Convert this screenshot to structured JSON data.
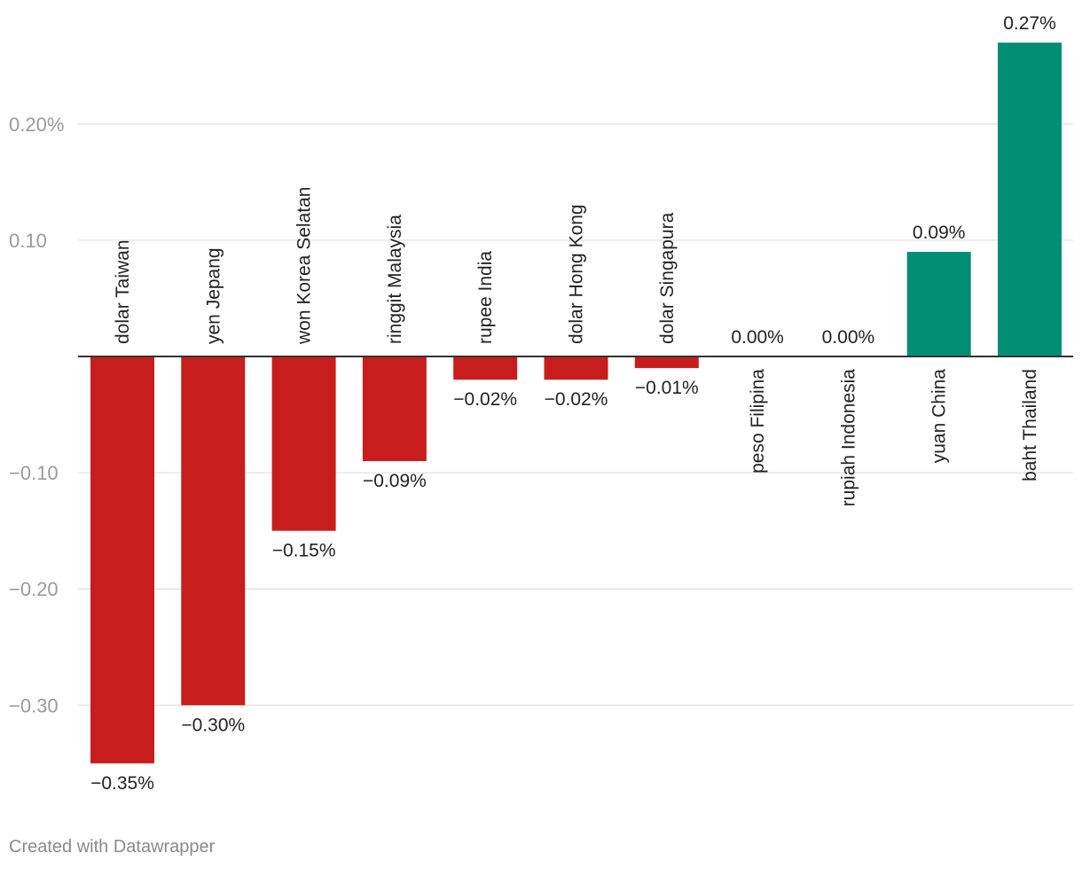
{
  "chart_data": {
    "type": "bar",
    "categories": [
      "dolar Taiwan",
      "yen Jepang",
      "won Korea Selatan",
      "ringgit Malaysia",
      "rupee India",
      "dolar Hong Kong",
      "dolar Singapura",
      "peso Filipina",
      "rupiah Indonesia",
      "yuan China",
      "baht Thailand"
    ],
    "values": [
      -0.35,
      -0.3,
      -0.15,
      -0.09,
      -0.02,
      -0.02,
      -0.01,
      0.0,
      0.0,
      0.09,
      0.27
    ],
    "value_labels": [
      "−0.35%",
      "−0.30%",
      "−0.15%",
      "−0.09%",
      "−0.02%",
      "−0.02%",
      "−0.01%",
      "0.00%",
      "0.00%",
      "0.09%",
      "0.27%"
    ],
    "y_ticks": [
      0.2,
      0.1,
      -0.1,
      -0.2,
      -0.3
    ],
    "y_tick_labels": [
      "0.20%",
      "0.10",
      "−0.10",
      "−0.20",
      "−0.30"
    ],
    "ylim": [
      -0.38,
      0.28
    ],
    "title": "",
    "xlabel": "",
    "ylabel": "",
    "grid": true,
    "colors": {
      "negative": "#c71e1d",
      "positive": "#008f74",
      "zero_line": "#333333",
      "grid": "#e1e1e1"
    }
  },
  "footer": {
    "credit": "Created with Datawrapper"
  }
}
